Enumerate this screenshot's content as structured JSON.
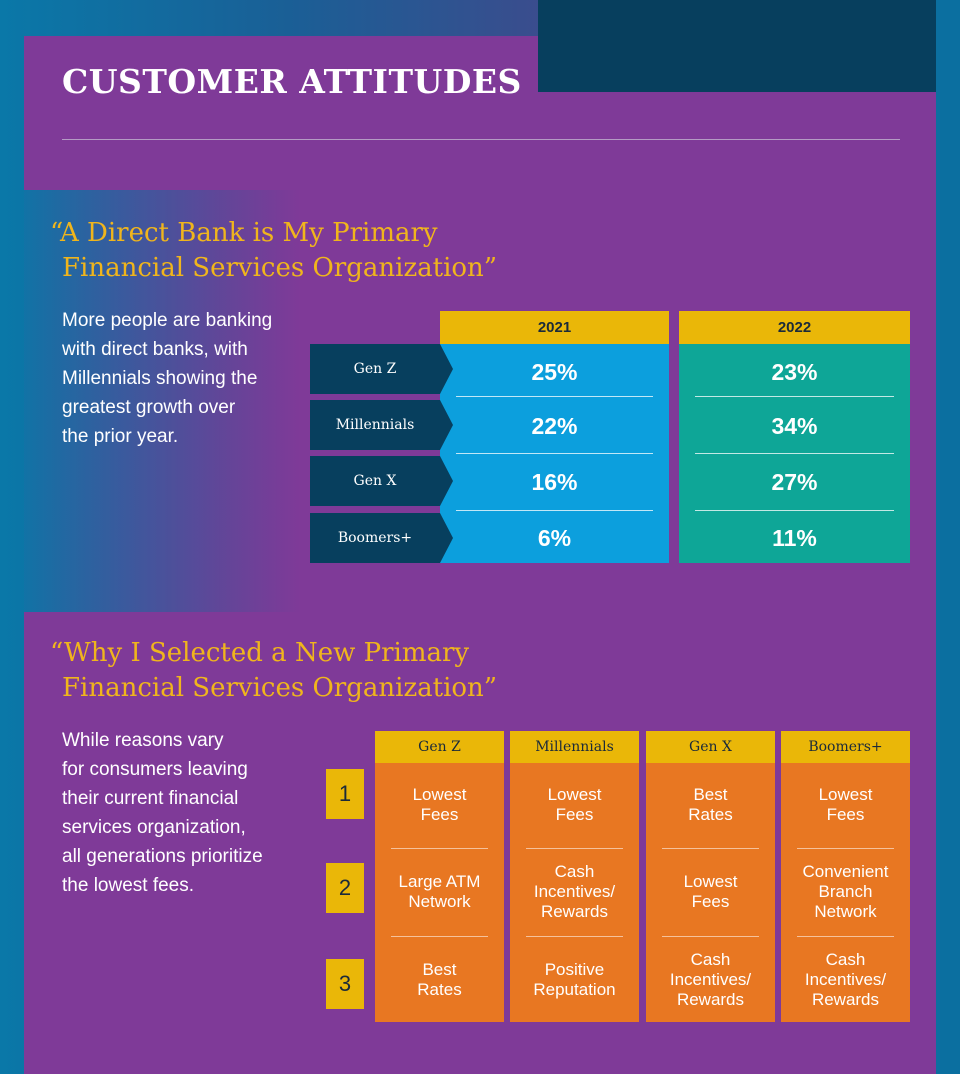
{
  "header": {
    "title": "CUSTOMER ATTITUDES"
  },
  "section1": {
    "quote_line1": "“A Direct Bank is My Primary",
    "quote_line2": "Financial Services Organization”",
    "description_lines": [
      "More people are banking",
      "with direct banks, with",
      "Millennials showing the",
      "greatest growth over",
      "the prior year."
    ],
    "years": [
      "2021",
      "2022"
    ],
    "generations": [
      "Gen Z",
      "Millennials",
      "Gen X",
      "Boomers+"
    ],
    "values_2021": [
      "25%",
      "22%",
      "16%",
      "6%"
    ],
    "values_2022": [
      "23%",
      "34%",
      "27%",
      "11%"
    ],
    "colors": {
      "col_2021": "#0c9fdd",
      "col_2022": "#0ea697",
      "header": "#eab708",
      "row_label": "#073f5e"
    }
  },
  "section2": {
    "quote_line1": "“Why I Selected a New Primary",
    "quote_line2": "Financial Services Organization”",
    "description_lines": [
      "While reasons vary",
      "for consumers leaving",
      "their current financial",
      "services organization,",
      "all generations prioritize",
      "the lowest fees."
    ],
    "ranks": [
      "1",
      "2",
      "3"
    ],
    "columns": [
      {
        "header": "Gen Z",
        "reasons": [
          [
            "Lowest",
            "Fees"
          ],
          [
            "Large ATM",
            "Network"
          ],
          [
            "Best",
            "Rates"
          ]
        ]
      },
      {
        "header": "Millennials",
        "reasons": [
          [
            "Lowest",
            "Fees"
          ],
          [
            "Cash",
            "Incentives/",
            "Rewards"
          ],
          [
            "Positive",
            "Reputation"
          ]
        ]
      },
      {
        "header": "Gen X",
        "reasons": [
          [
            "Best",
            "Rates"
          ],
          [
            "Lowest",
            "Fees"
          ],
          [
            "Cash",
            "Incentives/",
            "Rewards"
          ]
        ]
      },
      {
        "header": "Boomers+",
        "reasons": [
          [
            "Lowest",
            "Fees"
          ],
          [
            "Convenient",
            "Branch",
            "Network"
          ],
          [
            "Cash",
            "Incentives/",
            "Rewards"
          ]
        ]
      }
    ],
    "colors": {
      "cell": "#e87722",
      "header": "#eab708",
      "rank": "#eab708"
    }
  }
}
